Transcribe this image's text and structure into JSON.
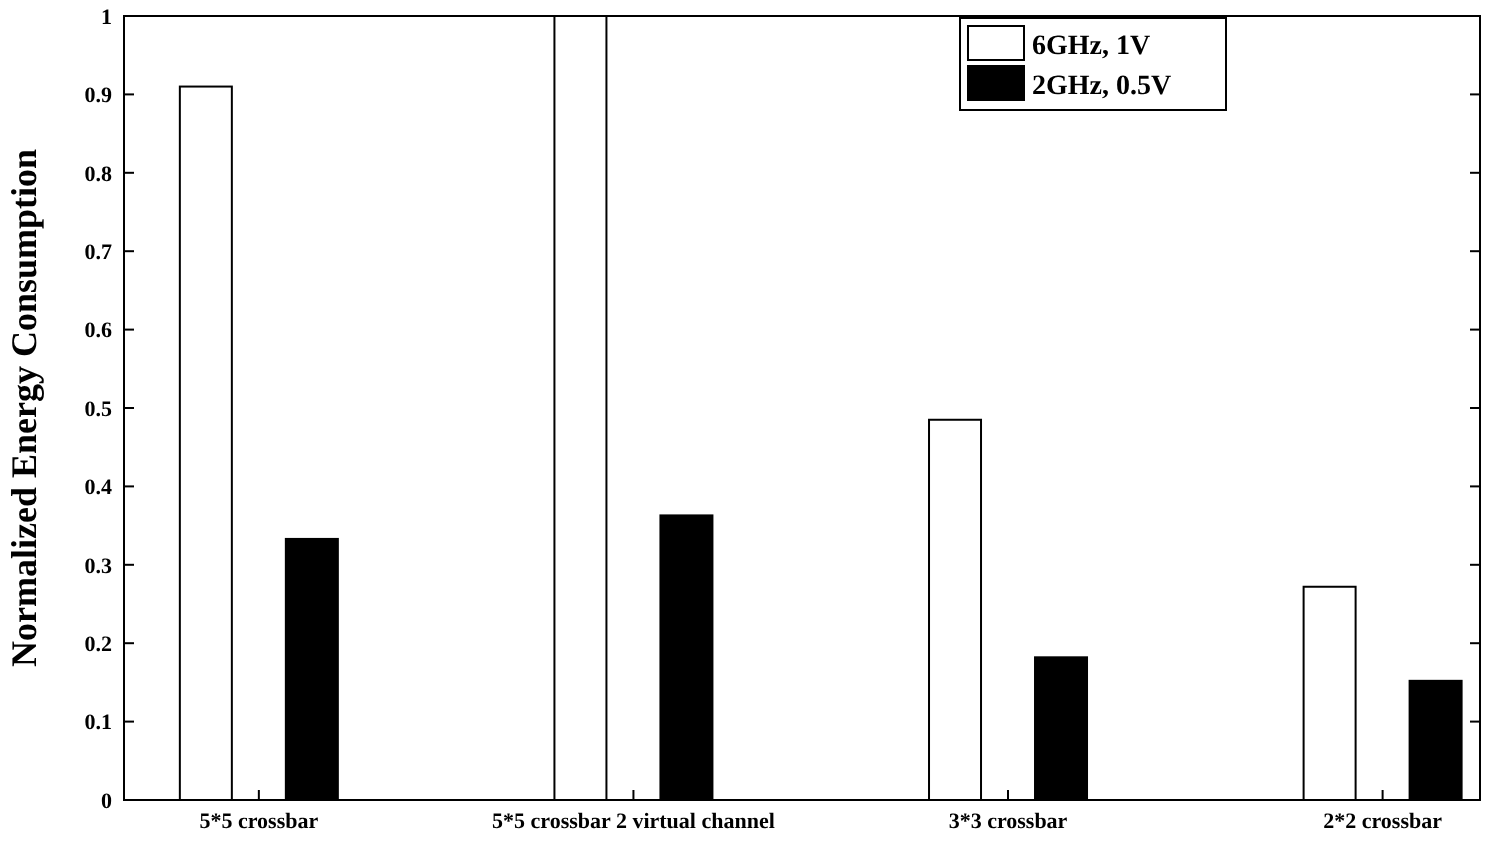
{
  "chart_data": {
    "type": "bar",
    "ylabel": "Normalized Energy Consumption",
    "categories": [
      "5*5 crossbar",
      "5*5 crossbar 2 virtual channel",
      "3*3 crossbar",
      "2*2 crossbar"
    ],
    "series": [
      {
        "name": "6GHz, 1V",
        "color": "#ffffff",
        "values": [
          0.91,
          1.0,
          0.485,
          0.272
        ]
      },
      {
        "name": "2GHz, 0.5V",
        "color": "#000000",
        "values": [
          0.333,
          0.363,
          0.182,
          0.152
        ]
      }
    ],
    "ylim": [
      0,
      1
    ],
    "yticks": [
      0,
      0.1,
      0.2,
      0.3,
      0.4,
      0.5,
      0.6,
      0.7,
      0.8,
      0.9,
      1
    ],
    "legend": "top right",
    "grid": false
  }
}
